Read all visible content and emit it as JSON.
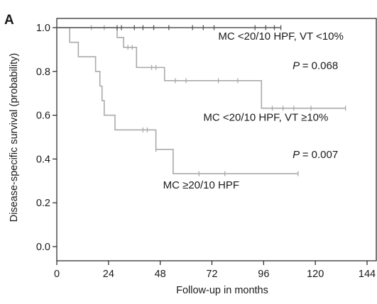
{
  "chart_data": {
    "type": "line",
    "panel_label": "A",
    "xlabel": "Follow-up in months",
    "ylabel": "Disease-specific survival (probability)",
    "xlim": [
      0,
      144
    ],
    "ylim": [
      0.0,
      1.0
    ],
    "xticks": [
      0,
      24,
      48,
      72,
      96,
      120,
      144
    ],
    "yticks": [
      0.0,
      0.2,
      0.4,
      0.6,
      0.8,
      1.0
    ],
    "ytick_labels": [
      "0.0",
      "0.2",
      "0.4",
      "0.6",
      "0.8",
      "1.0"
    ],
    "grid": false,
    "series": [
      {
        "name": "MC <20/10 HPF, VT <10%",
        "color": "#555555",
        "steps": [
          [
            0,
            1.0
          ],
          [
            104,
            1.0
          ]
        ],
        "censored": [
          [
            28,
            1.0
          ],
          [
            30,
            1.0
          ],
          [
            36,
            1.0
          ],
          [
            40,
            1.0
          ],
          [
            45,
            1.0
          ],
          [
            52,
            1.0
          ],
          [
            63,
            1.0
          ],
          [
            68,
            1.0
          ],
          [
            73,
            1.0
          ],
          [
            92,
            1.0
          ],
          [
            97,
            1.0
          ],
          [
            101,
            1.0
          ],
          [
            104,
            1.0
          ]
        ]
      },
      {
        "name": "MC <20/10 HPF, VT ≥10%",
        "color": "#aaaaaa",
        "steps": [
          [
            0,
            1.0
          ],
          [
            28,
            1.0
          ],
          [
            28,
            0.955
          ],
          [
            31,
            0.955
          ],
          [
            31,
            0.91
          ],
          [
            37,
            0.91
          ],
          [
            37,
            0.818
          ],
          [
            50,
            0.818
          ],
          [
            50,
            0.758
          ],
          [
            95,
            0.758
          ],
          [
            95,
            0.632
          ],
          [
            134,
            0.632
          ]
        ],
        "censored": [
          [
            16,
            1.0
          ],
          [
            22,
            1.0
          ],
          [
            33,
            0.91
          ],
          [
            35,
            0.91
          ],
          [
            44,
            0.818
          ],
          [
            46,
            0.818
          ],
          [
            55,
            0.758
          ],
          [
            60,
            0.758
          ],
          [
            75,
            0.758
          ],
          [
            84,
            0.758
          ],
          [
            100,
            0.632
          ],
          [
            105,
            0.632
          ],
          [
            110,
            0.632
          ],
          [
            118,
            0.632
          ],
          [
            134,
            0.632
          ]
        ]
      },
      {
        "name": "MC ≥20/10 HPF",
        "color": "#aaaaaa",
        "steps": [
          [
            0,
            1.0
          ],
          [
            6,
            1.0
          ],
          [
            6,
            0.933
          ],
          [
            10,
            0.933
          ],
          [
            10,
            0.867
          ],
          [
            18,
            0.867
          ],
          [
            18,
            0.8
          ],
          [
            20,
            0.8
          ],
          [
            20,
            0.733
          ],
          [
            21,
            0.733
          ],
          [
            21,
            0.667
          ],
          [
            22,
            0.667
          ],
          [
            22,
            0.6
          ],
          [
            27,
            0.6
          ],
          [
            27,
            0.533
          ],
          [
            46,
            0.533
          ],
          [
            46,
            0.444
          ],
          [
            54,
            0.444
          ],
          [
            54,
            0.333
          ],
          [
            112,
            0.333
          ]
        ],
        "censored": [
          [
            40,
            0.533
          ],
          [
            42,
            0.533
          ],
          [
            46,
            0.444
          ],
          [
            66,
            0.333
          ],
          [
            78,
            0.333
          ],
          [
            112,
            0.333
          ]
        ]
      }
    ],
    "annotations": [
      {
        "text": "MC <20/10 HPF, VT <10%",
        "x": 104,
        "y": 0.945,
        "italic_prefix": ""
      },
      {
        "text": "= 0.068",
        "x": 120,
        "y": 0.81,
        "italic_prefix": "P"
      },
      {
        "text": "MC <20/10 HPF, VT ≥10%",
        "x": 97,
        "y": 0.575,
        "italic_prefix": ""
      },
      {
        "text": "= 0.007",
        "x": 120,
        "y": 0.405,
        "italic_prefix": "P"
      },
      {
        "text": "MC ≥20/10 HPF",
        "x": 67,
        "y": 0.265,
        "italic_prefix": ""
      }
    ]
  }
}
